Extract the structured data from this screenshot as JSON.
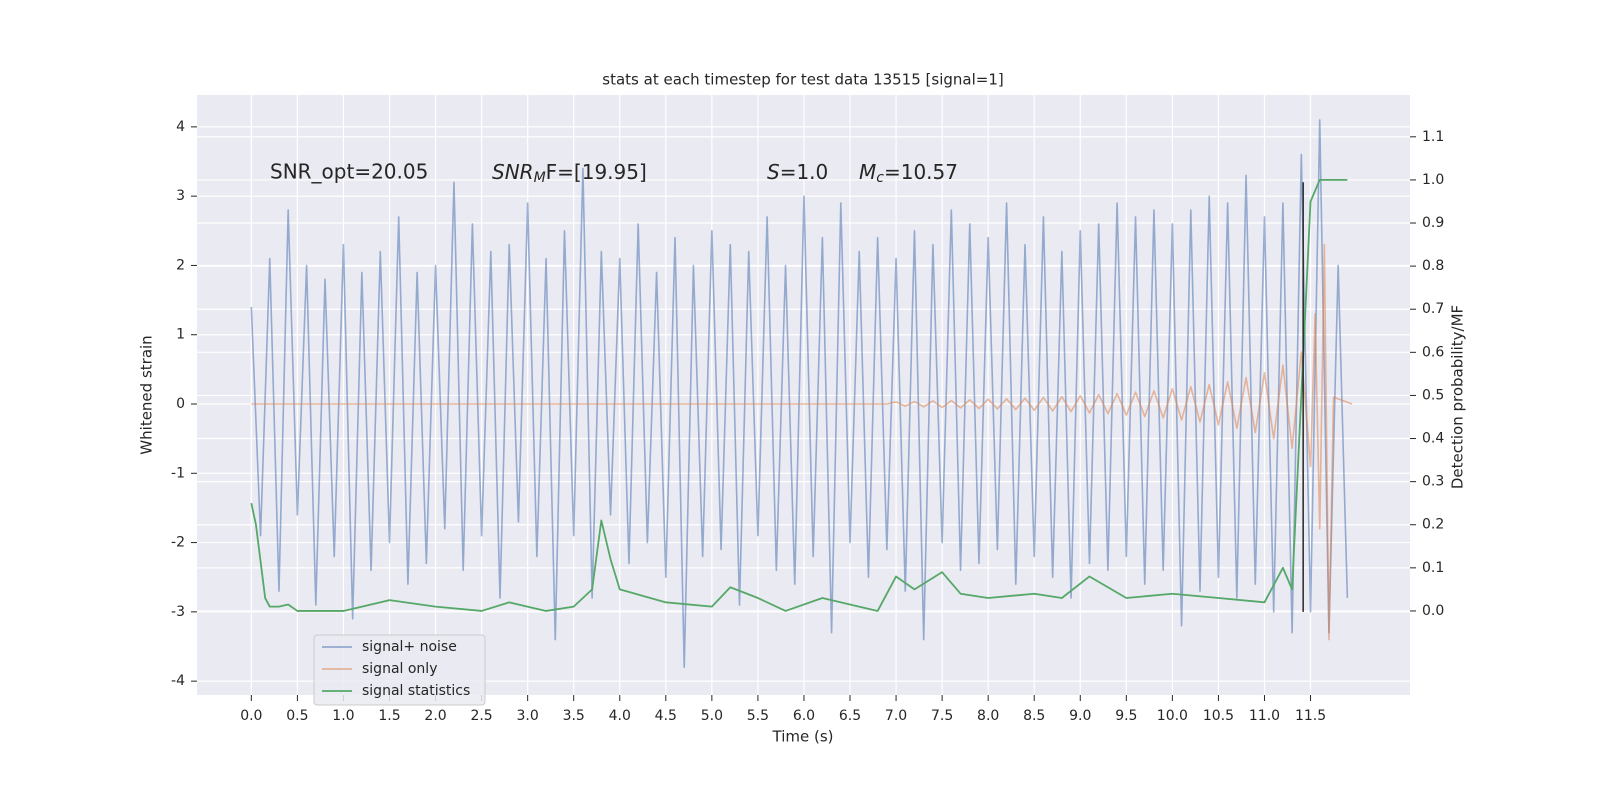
{
  "chart_data": {
    "type": "line",
    "title": "stats at each timestep for test data 13515 [signal=1]",
    "xlabel": "Time (s)",
    "ylabel": "Whitened strain",
    "y2label": "Detection probability/MF",
    "annotations": [
      "SNR_opt=20.05",
      {
        "main": "SNR",
        "sub": "M",
        "rest": "F=[19.95]"
      },
      {
        "main": "S",
        "rest": "=1.0"
      },
      {
        "main": "M",
        "sub": "c",
        "rest": "=10.57"
      }
    ],
    "xlim": [
      -0.59,
      12.58
    ],
    "ylim": [
      -4.2,
      4.46
    ],
    "y2lim": [
      -0.195,
      1.197
    ],
    "xticks": [
      {
        "value": 0,
        "label": "0.0"
      },
      0.5,
      {
        "value": 1,
        "label": "1.0"
      },
      1.5,
      {
        "value": 2,
        "label": "2.0"
      },
      2.5,
      {
        "value": 3,
        "label": "3.0"
      },
      3.5,
      {
        "value": 4,
        "label": "4.0"
      },
      4.5,
      {
        "value": 5,
        "label": "5.0"
      },
      5.5,
      {
        "value": 6,
        "label": "6.0"
      },
      6.5,
      {
        "value": 7,
        "label": "7.0"
      },
      7.5,
      {
        "value": 8,
        "label": "8.0"
      },
      8.5,
      {
        "value": 9,
        "label": "9.0"
      },
      9.5,
      {
        "value": 10,
        "label": "10.0"
      },
      10.5,
      {
        "value": 11,
        "label": "11.0"
      },
      11.5
    ],
    "yticks": [
      -4,
      -3,
      -2,
      -1,
      0,
      1,
      2,
      3,
      4
    ],
    "y2ticks": [
      {
        "value": 0,
        "label": "0.0"
      },
      0.1,
      0.2,
      0.3,
      0.4,
      0.5,
      0.6,
      0.7,
      0.8,
      0.9,
      {
        "value": 1,
        "label": "1.0"
      },
      1.1
    ],
    "grid": true,
    "legend": "lower left",
    "vline": {
      "x": 11.42,
      "ymin": -3,
      "ymax": 3.2,
      "color": "#262626"
    },
    "series": [
      {
        "name": "signal+ noise",
        "color": "#4c72b0",
        "x": [
          0,
          0.1,
          0.2,
          0.3,
          0.4,
          0.5,
          0.6,
          0.7,
          0.8,
          0.9,
          1,
          1.1,
          1.2,
          1.3,
          1.4,
          1.5,
          1.6,
          1.7,
          1.8,
          1.9,
          2,
          2.1,
          2.2,
          2.3,
          2.4,
          2.5,
          2.6,
          2.7,
          2.8,
          2.9,
          3,
          3.1,
          3.2,
          3.3,
          3.4,
          3.5,
          3.6,
          3.7,
          3.8,
          3.9,
          4,
          4.1,
          4.2,
          4.3,
          4.4,
          4.5,
          4.6,
          4.7,
          4.8,
          4.9,
          5,
          5.1,
          5.2,
          5.3,
          5.4,
          5.5,
          5.6,
          5.7,
          5.8,
          5.9,
          6,
          6.1,
          6.2,
          6.3,
          6.4,
          6.5,
          6.6,
          6.7,
          6.8,
          6.9,
          7,
          7.1,
          7.2,
          7.3,
          7.4,
          7.5,
          7.6,
          7.7,
          7.8,
          7.9,
          8,
          8.1,
          8.2,
          8.3,
          8.4,
          8.5,
          8.6,
          8.7,
          8.8,
          8.9,
          9,
          9.1,
          9.2,
          9.3,
          9.4,
          9.5,
          9.6,
          9.7,
          9.8,
          9.9,
          10,
          10.1,
          10.2,
          10.3,
          10.4,
          10.5,
          10.6,
          10.7,
          10.8,
          10.9,
          11,
          11.1,
          11.2,
          11.3,
          11.4,
          11.5,
          11.6,
          11.7,
          11.8,
          11.9
        ],
        "values": [
          1.4,
          -1.9,
          2.1,
          -2.7,
          2.8,
          -1.6,
          2.0,
          -2.9,
          1.8,
          -2.2,
          2.3,
          -3.1,
          1.9,
          -2.4,
          2.2,
          -2.0,
          2.7,
          -2.6,
          1.9,
          -2.3,
          2.0,
          -1.8,
          3.2,
          -2.4,
          2.6,
          -1.9,
          2.2,
          -2.8,
          2.3,
          -1.7,
          2.9,
          -2.2,
          2.1,
          -3.4,
          2.5,
          -1.9,
          3.4,
          -2.8,
          2.2,
          -1.6,
          2.1,
          -2.3,
          2.6,
          -2.0,
          1.9,
          -2.5,
          2.4,
          -3.8,
          2.0,
          -2.2,
          2.5,
          -2.1,
          2.3,
          -2.9,
          2.2,
          -1.9,
          2.7,
          -2.4,
          2.0,
          -2.6,
          3.0,
          -2.2,
          2.4,
          -3.3,
          2.9,
          -2.0,
          2.2,
          -2.5,
          2.4,
          -2.1,
          2.1,
          -2.7,
          2.5,
          -3.4,
          2.3,
          -2.0,
          2.8,
          -2.4,
          2.6,
          -2.3,
          2.4,
          -2.1,
          2.9,
          -2.6,
          2.3,
          -2.2,
          2.7,
          -2.5,
          2.2,
          -2.8,
          2.5,
          -2.3,
          2.6,
          -2.4,
          2.9,
          -2.2,
          2.7,
          -2.6,
          2.8,
          -2.4,
          2.6,
          -3.2,
          2.8,
          -2.7,
          3.0,
          -2.5,
          2.9,
          -2.8,
          3.3,
          -2.6,
          2.7,
          -3.0,
          2.9,
          -3.3,
          3.6,
          -3.0,
          4.1,
          -3.3,
          2.0,
          -2.8
        ]
      },
      {
        "name": "signal only",
        "color": "#dd8452",
        "x": [
          0,
          6.9,
          7,
          7.1,
          7.2,
          7.3,
          7.4,
          7.5,
          7.6,
          7.7,
          7.8,
          7.9,
          8,
          8.1,
          8.2,
          8.3,
          8.4,
          8.5,
          8.6,
          8.7,
          8.8,
          8.9,
          9,
          9.1,
          9.2,
          9.3,
          9.4,
          9.5,
          9.6,
          9.7,
          9.8,
          9.9,
          10,
          10.1,
          10.2,
          10.3,
          10.4,
          10.5,
          10.6,
          10.7,
          10.8,
          10.9,
          11,
          11.1,
          11.2,
          11.3,
          11.4,
          11.5,
          11.55,
          11.6,
          11.65,
          11.7,
          11.75,
          11.95
        ],
        "values": [
          0,
          0,
          0.03,
          -0.03,
          0.035,
          -0.04,
          0.045,
          -0.05,
          0.05,
          -0.055,
          0.06,
          -0.065,
          0.07,
          -0.07,
          0.075,
          -0.08,
          0.085,
          -0.09,
          0.095,
          -0.1,
          0.105,
          -0.11,
          0.12,
          -0.13,
          0.135,
          -0.14,
          0.15,
          -0.16,
          0.17,
          -0.18,
          0.19,
          -0.2,
          0.22,
          -0.23,
          0.25,
          -0.26,
          0.28,
          -0.3,
          0.32,
          -0.35,
          0.38,
          -0.41,
          0.45,
          -0.5,
          0.56,
          -0.64,
          0.75,
          -0.9,
          1.3,
          -1.8,
          2.3,
          -3.4,
          0.1,
          0
        ]
      },
      {
        "name": "signal statistics",
        "color": "#55a868",
        "axis": "y2",
        "x": [
          0,
          0.05,
          0.15,
          0.2,
          0.3,
          0.4,
          0.5,
          1,
          1.5,
          2,
          2.5,
          2.8,
          3.2,
          3.5,
          3.7,
          3.8,
          3.9,
          4,
          4.5,
          5,
          5.2,
          5.5,
          5.8,
          6.2,
          6.5,
          6.8,
          7,
          7.2,
          7.5,
          7.7,
          8,
          8.5,
          8.8,
          9.1,
          9.5,
          10,
          10.5,
          11,
          11.2,
          11.3,
          11.4,
          11.5,
          11.6,
          11.9
        ],
        "values": [
          0.25,
          0.2,
          0.03,
          0.01,
          0.01,
          0.015,
          0,
          0,
          0.025,
          0.01,
          0,
          0.02,
          0,
          0.01,
          0.05,
          0.21,
          0.12,
          0.05,
          0.02,
          0.01,
          0.055,
          0.03,
          0,
          0.03,
          0.015,
          0,
          0.08,
          0.05,
          0.09,
          0.04,
          0.03,
          0.04,
          0.03,
          0.08,
          0.03,
          0.04,
          0.03,
          0.02,
          0.1,
          0.05,
          0.5,
          0.95,
          1.0,
          1.0
        ]
      }
    ]
  }
}
